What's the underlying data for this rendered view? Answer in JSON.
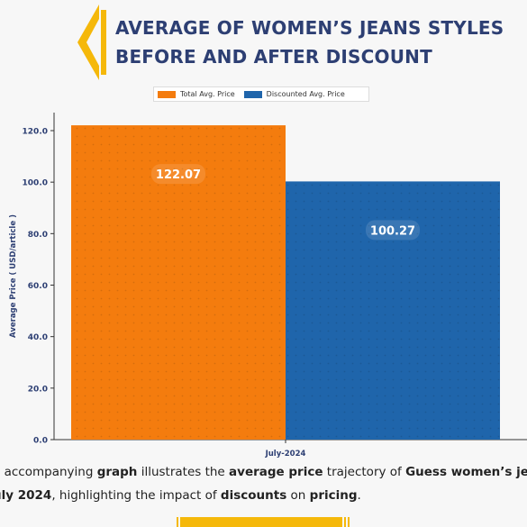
{
  "page": {
    "title_line1": "AVERAGE OF WOMEN’S JEANS STYLES",
    "title_line2": "BEFORE AND AFTER DISCOUNT",
    "accent_color": "#f5b80a",
    "title_color": "#2d3f73"
  },
  "legend": [
    {
      "label": "Total Avg. Price",
      "color": "#f47c0e"
    },
    {
      "label": "Discounted Avg. Price",
      "color": "#1f65ab"
    }
  ],
  "chart_data": {
    "type": "bar",
    "categories": [
      "July-2024"
    ],
    "series": [
      {
        "name": "Total Avg. Price",
        "values": [
          122.07
        ],
        "color": "#f47c0e"
      },
      {
        "name": "Discounted Avg. Price",
        "values": [
          100.27
        ],
        "color": "#1f65ab"
      }
    ],
    "data_labels": [
      "122.07",
      "100.27"
    ],
    "ylabel": "Average Price ( USD/article )",
    "xlabel": "",
    "ylim": [
      0,
      127
    ],
    "yticks": [
      0,
      20,
      40,
      60,
      80,
      100,
      120
    ],
    "ytick_labels": [
      "0.0",
      "20.0",
      "40.0",
      "60.0",
      "80.0",
      "100.0",
      "120.0"
    ],
    "grid": false,
    "legend_position": "top-center"
  },
  "caption": {
    "line1": [
      {
        "text": "e accompanying ",
        "bold": false
      },
      {
        "text": "graph",
        "bold": true
      },
      {
        "text": " illustrates the ",
        "bold": false
      },
      {
        "text": "average price",
        "bold": true
      },
      {
        "text": " trajectory of ",
        "bold": false
      },
      {
        "text": "Guess women’s jea",
        "bold": true
      }
    ],
    "line2": [
      {
        "text": "uly 2024",
        "bold": true
      },
      {
        "text": ", highlighting the impact of ",
        "bold": false
      },
      {
        "text": "discounts",
        "bold": true
      },
      {
        "text": " on ",
        "bold": false
      },
      {
        "text": "pricing",
        "bold": true
      },
      {
        "text": ".",
        "bold": false
      }
    ]
  }
}
